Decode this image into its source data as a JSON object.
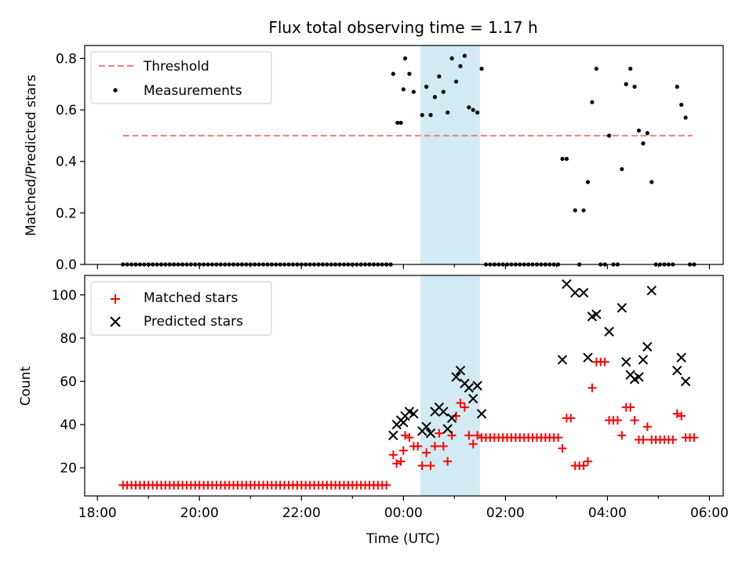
{
  "figure": {
    "title": "Flux total observing time = 1.17 h"
  },
  "colors": {
    "threshold": "#f08080",
    "highlight": "#add8e6",
    "matched": "#ff0000",
    "predicted": "#000000",
    "measurement": "#000000"
  },
  "chart_data": [
    {
      "type": "scatter",
      "ylabel": "Matched/Predicted stars",
      "xlabel": "",
      "x_unit": "hours from 2024 day-boundary (UTC)",
      "xlim": [
        "18:00",
        "06:00"
      ],
      "ylim": [
        0,
        0.85
      ],
      "yticks": [
        0.0,
        0.2,
        0.4,
        0.6,
        0.8
      ],
      "yticklabels": [
        "0.0",
        "0.2",
        "0.4",
        "0.6",
        "0.8"
      ],
      "highlight_span": [
        "00:20",
        "01:30"
      ],
      "legend": {
        "position": "top-left",
        "entries": [
          "Threshold",
          "Measurements"
        ]
      },
      "threshold": {
        "name": "Threshold",
        "x": [
          "18:30",
          "05:40"
        ],
        "y": 0.5
      },
      "measurements": {
        "name": "Measurements",
        "zeros_start": "18:30",
        "zeros_end": "23:40",
        "zeros_step_min": 5,
        "points": [
          [
            "23:40",
            0.0
          ],
          [
            "23:45",
            0.0
          ],
          [
            "23:48",
            0.74
          ],
          [
            "23:53",
            0.55
          ],
          [
            "23:57",
            0.55
          ],
          [
            "00:00",
            0.68
          ],
          [
            "00:02",
            0.8
          ],
          [
            "00:07",
            0.74
          ],
          [
            "00:12",
            0.67
          ],
          [
            "00:22",
            0.58
          ],
          [
            "00:27",
            0.69
          ],
          [
            "00:32",
            0.58
          ],
          [
            "00:37",
            0.65
          ],
          [
            "00:42",
            0.73
          ],
          [
            "00:47",
            0.67
          ],
          [
            "00:52",
            0.59
          ],
          [
            "00:57",
            0.8
          ],
          [
            "01:02",
            0.71
          ],
          [
            "01:07",
            0.77
          ],
          [
            "01:12",
            0.81
          ],
          [
            "01:17",
            0.61
          ],
          [
            "01:22",
            0.6
          ],
          [
            "01:27",
            0.59
          ],
          [
            "01:32",
            0.76
          ],
          [
            "03:07",
            0.41
          ],
          [
            "03:12",
            0.41
          ],
          [
            "03:22",
            0.21
          ],
          [
            "03:27",
            0.0
          ],
          [
            "03:32",
            0.21
          ],
          [
            "03:37",
            0.32
          ],
          [
            "03:42",
            0.63
          ],
          [
            "03:47",
            0.76
          ],
          [
            "03:52",
            0.0
          ],
          [
            "03:57",
            0.0
          ],
          [
            "04:02",
            0.5
          ],
          [
            "04:07",
            0.0
          ],
          [
            "04:12",
            0.0
          ],
          [
            "04:17",
            0.37
          ],
          [
            "04:22",
            0.7
          ],
          [
            "04:27",
            0.76
          ],
          [
            "04:32",
            0.69
          ],
          [
            "04:37",
            0.52
          ],
          [
            "04:42",
            0.47
          ],
          [
            "04:47",
            0.51
          ],
          [
            "04:52",
            0.32
          ],
          [
            "04:57",
            0.0
          ],
          [
            "05:02",
            0.0
          ],
          [
            "05:07",
            0.0
          ],
          [
            "05:12",
            0.0
          ],
          [
            "05:17",
            0.0
          ],
          [
            "05:22",
            0.69
          ],
          [
            "05:27",
            0.62
          ],
          [
            "05:32",
            0.57
          ],
          [
            "05:37",
            0.0
          ],
          [
            "05:42",
            0.0
          ]
        ],
        "flat_zero_ranges": [
          [
            "01:37",
            "03:02"
          ]
        ]
      }
    },
    {
      "type": "scatter",
      "ylabel": "Count",
      "xlabel": "Time (UTC)",
      "xlim": [
        "18:00",
        "06:00"
      ],
      "ylim": [
        7,
        109
      ],
      "yticks": [
        20,
        40,
        60,
        80,
        100
      ],
      "yticklabels": [
        "20",
        "40",
        "60",
        "80",
        "100"
      ],
      "xticklabels": [
        "18:00",
        "20:00",
        "22:00",
        "00:00",
        "02:00",
        "04:00",
        "06:00"
      ],
      "highlight_span": [
        "00:20",
        "01:30"
      ],
      "legend": {
        "position": "top-left",
        "entries": [
          "Matched stars",
          "Predicted stars"
        ]
      },
      "series": [
        {
          "name": "Matched stars",
          "marker": "plus",
          "constant_runs": [
            {
              "from": "18:30",
              "to": "23:40",
              "step_min": 5,
              "y": 12
            },
            {
              "from": "01:37",
              "to": "03:02",
              "step_min": 5,
              "y": 34
            }
          ],
          "points": [
            [
              "23:48",
              26
            ],
            [
              "23:52",
              22
            ],
            [
              "23:57",
              23
            ],
            [
              "00:00",
              28
            ],
            [
              "00:02",
              35
            ],
            [
              "00:07",
              34
            ],
            [
              "00:12",
              30
            ],
            [
              "00:17",
              30
            ],
            [
              "00:22",
              21
            ],
            [
              "00:27",
              27
            ],
            [
              "00:32",
              21
            ],
            [
              "00:37",
              30
            ],
            [
              "00:42",
              36
            ],
            [
              "00:47",
              30
            ],
            [
              "00:52",
              23
            ],
            [
              "00:57",
              35
            ],
            [
              "01:02",
              44
            ],
            [
              "01:07",
              50
            ],
            [
              "01:12",
              48
            ],
            [
              "01:17",
              35
            ],
            [
              "01:22",
              31
            ],
            [
              "01:27",
              35
            ],
            [
              "01:32",
              34
            ],
            [
              "03:07",
              29
            ],
            [
              "03:12",
              43
            ],
            [
              "03:17",
              43
            ],
            [
              "03:22",
              21
            ],
            [
              "03:27",
              21
            ],
            [
              "03:32",
              21
            ],
            [
              "03:37",
              23
            ],
            [
              "03:42",
              57
            ],
            [
              "03:47",
              69
            ],
            [
              "03:52",
              69
            ],
            [
              "03:57",
              69
            ],
            [
              "04:02",
              42
            ],
            [
              "04:07",
              42
            ],
            [
              "04:12",
              42
            ],
            [
              "04:17",
              35
            ],
            [
              "04:22",
              48
            ],
            [
              "04:27",
              48
            ],
            [
              "04:32",
              42
            ],
            [
              "04:37",
              33
            ],
            [
              "04:42",
              33
            ],
            [
              "04:47",
              39
            ],
            [
              "04:52",
              33
            ],
            [
              "04:57",
              33
            ],
            [
              "05:02",
              33
            ],
            [
              "05:07",
              33
            ],
            [
              "05:12",
              33
            ],
            [
              "05:17",
              33
            ],
            [
              "05:22",
              45
            ],
            [
              "05:27",
              44
            ],
            [
              "05:32",
              34
            ],
            [
              "05:37",
              34
            ],
            [
              "05:42",
              34
            ]
          ]
        },
        {
          "name": "Predicted stars",
          "marker": "x",
          "points": [
            [
              "23:48",
              35
            ],
            [
              "23:52",
              40
            ],
            [
              "23:57",
              42
            ],
            [
              "00:00",
              41
            ],
            [
              "00:02",
              44
            ],
            [
              "00:07",
              46
            ],
            [
              "00:12",
              45
            ],
            [
              "00:22",
              37
            ],
            [
              "00:27",
              39
            ],
            [
              "00:32",
              36
            ],
            [
              "00:37",
              46
            ],
            [
              "00:42",
              48
            ],
            [
              "00:47",
              46
            ],
            [
              "00:52",
              38
            ],
            [
              "00:57",
              43
            ],
            [
              "01:02",
              62
            ],
            [
              "01:07",
              65
            ],
            [
              "01:12",
              59
            ],
            [
              "01:17",
              57
            ],
            [
              "01:22",
              52
            ],
            [
              "01:27",
              58
            ],
            [
              "01:32",
              45
            ],
            [
              "03:07",
              70
            ],
            [
              "03:12",
              105
            ],
            [
              "03:22",
              101
            ],
            [
              "03:32",
              101
            ],
            [
              "03:37",
              71
            ],
            [
              "03:42",
              90
            ],
            [
              "03:47",
              91
            ],
            [
              "04:02",
              83
            ],
            [
              "04:17",
              94
            ],
            [
              "04:22",
              69
            ],
            [
              "04:27",
              63
            ],
            [
              "04:32",
              61
            ],
            [
              "04:37",
              62
            ],
            [
              "04:42",
              70
            ],
            [
              "04:47",
              76
            ],
            [
              "04:52",
              102
            ],
            [
              "05:22",
              65
            ],
            [
              "05:27",
              71
            ],
            [
              "05:32",
              60
            ]
          ]
        }
      ]
    }
  ]
}
